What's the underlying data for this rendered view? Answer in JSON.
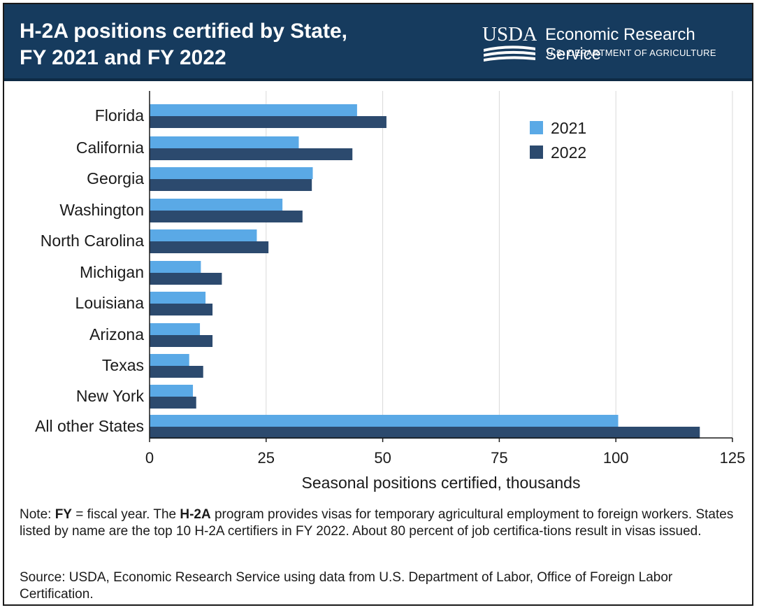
{
  "header": {
    "title_line1": "H-2A positions certified by State,",
    "title_line2": "FY 2021 and FY 2022",
    "logo_text": "USDA",
    "agency": "Economic Research Service",
    "department": "U.S. DEPARTMENT OF AGRICULTURE"
  },
  "colors": {
    "header_bg": "#163b5e",
    "series_2021": "#5aa9e6",
    "series_2022": "#2c4a6e",
    "gridline": "#d9d9d9"
  },
  "chart_data": {
    "type": "bar",
    "orientation": "horizontal",
    "categories": [
      "Florida",
      "California",
      "Georgia",
      "Washington",
      "North Carolina",
      "Michigan",
      "Louisiana",
      "Arizona",
      "Texas",
      "New York",
      "All other States"
    ],
    "series": [
      {
        "name": "2021",
        "values": [
          44.5,
          32.0,
          35.0,
          28.5,
          23.0,
          11.0,
          12.0,
          10.8,
          8.5,
          9.3,
          100.5
        ]
      },
      {
        "name": "2022",
        "values": [
          50.8,
          43.5,
          34.8,
          32.8,
          25.5,
          15.5,
          13.5,
          13.5,
          11.5,
          10.0,
          118.0
        ]
      }
    ],
    "xlabel": "Seasonal positions certified, thousands",
    "xlim": [
      0,
      125
    ],
    "xticks": [
      0,
      25,
      50,
      75,
      100,
      125
    ],
    "grid": true,
    "legend_position": "top-right"
  },
  "notes": {
    "note_prefix": "Note: ",
    "note_term1": "FY",
    "note_mid1": " = fiscal year. The ",
    "note_term2": "H-2A",
    "note_rest": " program provides visas for temporary agricultural employment to foreign workers. States listed by name are the top 10 H-2A certifiers in FY 2022. About 80 percent of job certifica-tions result in visas issued.",
    "source": "Source: USDA, Economic Research Service using data from U.S. Department of Labor, Office of Foreign Labor Certification."
  }
}
